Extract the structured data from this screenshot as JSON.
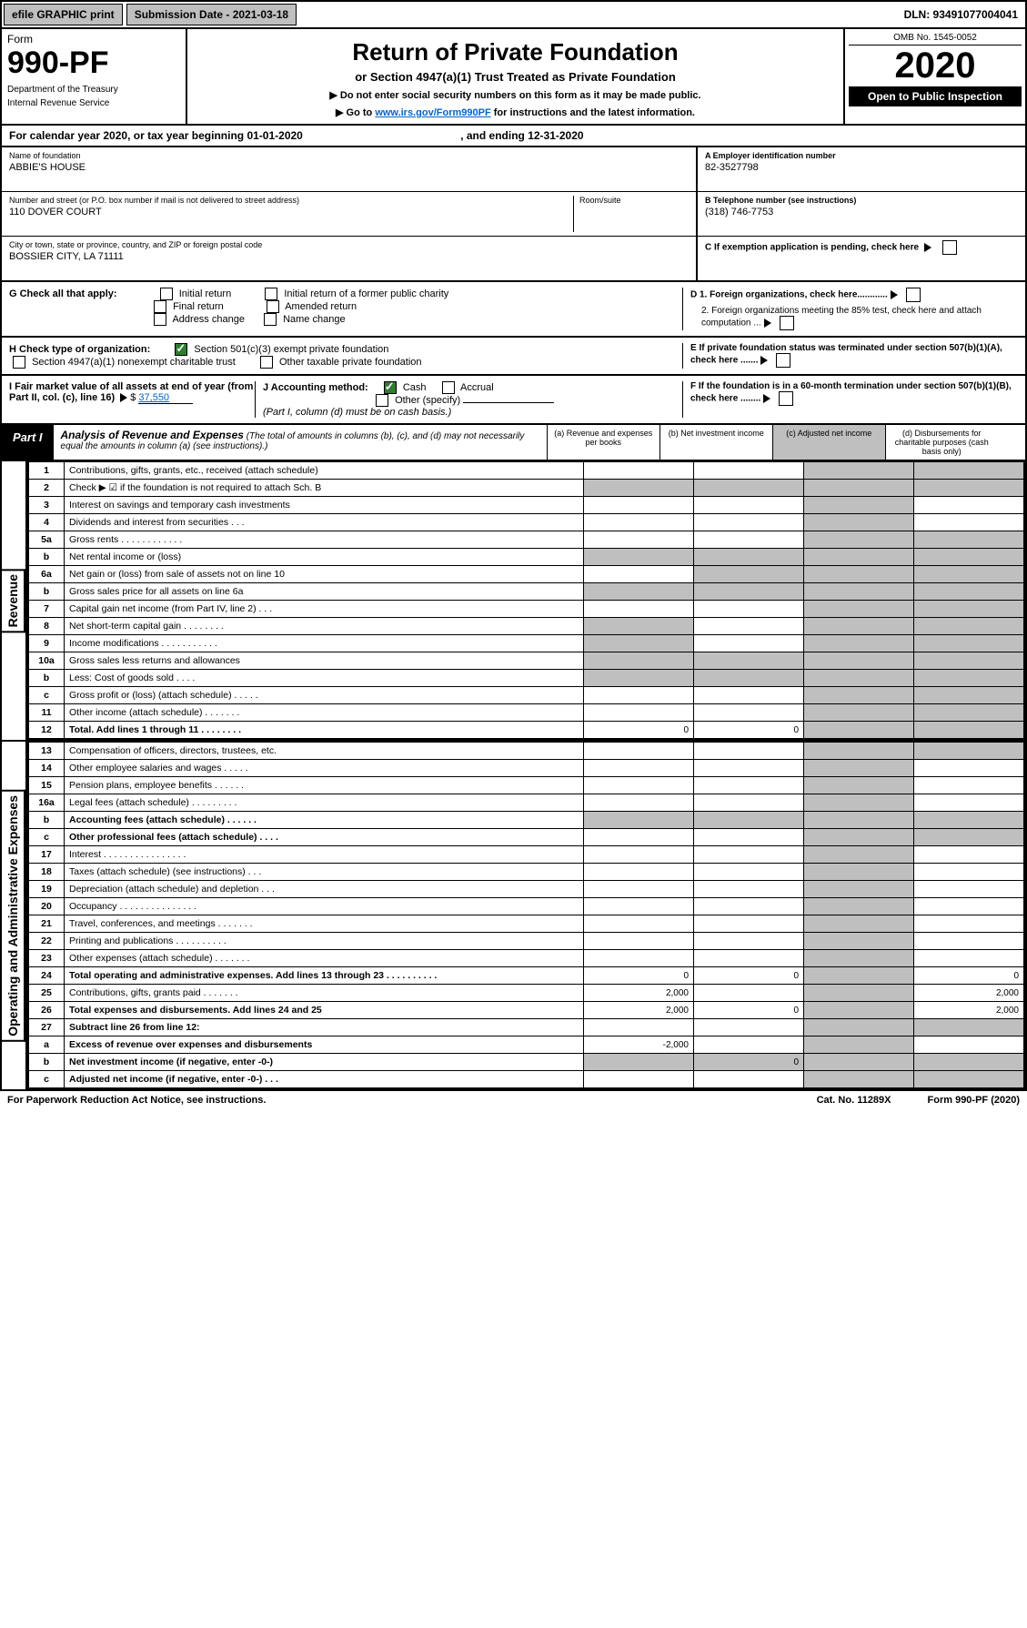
{
  "topbar": {
    "efile": "efile GRAPHIC print",
    "submission": "Submission Date - 2021-03-18",
    "dln": "DLN: 93491077004041"
  },
  "hdr": {
    "form": "Form",
    "num": "990-PF",
    "dept": "Department of the Treasury",
    "irs": "Internal Revenue Service",
    "title": "Return of Private Foundation",
    "subtitle": "or Section 4947(a)(1) Trust Treated as Private Foundation",
    "note1": "▶ Do not enter social security numbers on this form as it may be made public.",
    "note2": "▶ Go to ",
    "link": "www.irs.gov/Form990PF",
    "note3": " for instructions and the latest information.",
    "omb": "OMB No. 1545-0052",
    "year": "2020",
    "open": "Open to Public Inspection"
  },
  "cal": {
    "pre": "For calendar year 2020, or tax year beginning ",
    "begin": "01-01-2020",
    "mid": ", and ending ",
    "end": "12-31-2020"
  },
  "info": {
    "name_lbl": "Name of foundation",
    "name": "ABBIE'S HOUSE",
    "ein_lbl": "A Employer identification number",
    "ein": "82-3527798",
    "addr_lbl": "Number and street (or P.O. box number if mail is not delivered to street address)",
    "addr": "110 DOVER COURT",
    "room_lbl": "Room/suite",
    "tel_lbl": "B Telephone number (see instructions)",
    "tel": "(318) 746-7753",
    "city_lbl": "City or town, state or province, country, and ZIP or foreign postal code",
    "city": "BOSSIER CITY, LA  71111",
    "c_lbl": "C If exemption application is pending, check here",
    "g_lbl": "G Check all that apply:",
    "g_opts": [
      "Initial return",
      "Initial return of a former public charity",
      "Final return",
      "Amended return",
      "Address change",
      "Name change"
    ],
    "d1": "D 1. Foreign organizations, check here............",
    "d2": "2. Foreign organizations meeting the 85% test, check here and attach computation ...",
    "h_lbl": "H Check type of organization:",
    "h1": "Section 501(c)(3) exempt private foundation",
    "h2": "Section 4947(a)(1) nonexempt charitable trust",
    "h3": "Other taxable private foundation",
    "e_lbl": "E If private foundation status was terminated under section 507(b)(1)(A), check here .......",
    "i_lbl": "I Fair market value of all assets at end of year (from Part II, col. (c), line 16)",
    "i_val": "37,550",
    "j_lbl": "J Accounting method:",
    "j1": "Cash",
    "j2": "Accrual",
    "j3": "Other (specify)",
    "j_note": "(Part I, column (d) must be on cash basis.)",
    "f_lbl": "F If the foundation is in a 60-month termination under section 507(b)(1)(B), check here ........"
  },
  "part1": {
    "tab": "Part I",
    "title": "Analysis of Revenue and Expenses",
    "sub": "(The total of amounts in columns (b), (c), and (d) may not necessarily equal the amounts in column (a) (see instructions).)",
    "cols": {
      "a": "(a) Revenue and expenses per books",
      "b": "(b) Net investment income",
      "c": "(c) Adjusted net income",
      "d": "(d) Disbursements for charitable purposes (cash basis only)"
    }
  },
  "rev": {
    "label": "Revenue",
    "rows": [
      {
        "n": "1",
        "d": "Contributions, gifts, grants, etc., received (attach schedule)"
      },
      {
        "n": "2",
        "d": "Check ▶ ☑ if the foundation is not required to attach Sch. B"
      },
      {
        "n": "3",
        "d": "Interest on savings and temporary cash investments"
      },
      {
        "n": "4",
        "d": "Dividends and interest from securities   .  .  ."
      },
      {
        "n": "5a",
        "d": "Gross rents   .  .  .  .  .  .  .  .  .  .  .  ."
      },
      {
        "n": "b",
        "d": "Net rental income or (loss)"
      },
      {
        "n": "6a",
        "d": "Net gain or (loss) from sale of assets not on line 10"
      },
      {
        "n": "b",
        "d": "Gross sales price for all assets on line 6a"
      },
      {
        "n": "7",
        "d": "Capital gain net income (from Part IV, line 2)   .  .  ."
      },
      {
        "n": "8",
        "d": "Net short-term capital gain   .  .  .  .  .  .  .  ."
      },
      {
        "n": "9",
        "d": "Income modifications  .  .  .  .  .  .  .  .  .  .  ."
      },
      {
        "n": "10a",
        "d": "Gross sales less returns and allowances"
      },
      {
        "n": "b",
        "d": "Less: Cost of goods sold   .  .  .  ."
      },
      {
        "n": "c",
        "d": "Gross profit or (loss) (attach schedule)   .  .  .  .  ."
      },
      {
        "n": "11",
        "d": "Other income (attach schedule)   .  .  .  .  .  .  ."
      },
      {
        "n": "12",
        "d": "Total. Add lines 1 through 11   .  .  .  .  .  .  .  .",
        "a": "0",
        "b": "0"
      }
    ]
  },
  "exp": {
    "label": "Operating and Administrative Expenses",
    "rows": [
      {
        "n": "13",
        "d": "Compensation of officers, directors, trustees, etc."
      },
      {
        "n": "14",
        "d": "Other employee salaries and wages   .  .  .  .  ."
      },
      {
        "n": "15",
        "d": "Pension plans, employee benefits   .  .  .  .  .  ."
      },
      {
        "n": "16a",
        "d": "Legal fees (attach schedule)  .  .  .  .  .  .  .  .  ."
      },
      {
        "n": "b",
        "d": "Accounting fees (attach schedule)   .  .  .  .  .  ."
      },
      {
        "n": "c",
        "d": "Other professional fees (attach schedule)   .  .  .  ."
      },
      {
        "n": "17",
        "d": "Interest  .  .  .  .  .  .  .  .  .  .  .  .  .  .  .  ."
      },
      {
        "n": "18",
        "d": "Taxes (attach schedule) (see instructions)   .  .  ."
      },
      {
        "n": "19",
        "d": "Depreciation (attach schedule) and depletion   .  .  ."
      },
      {
        "n": "20",
        "d": "Occupancy  .  .  .  .  .  .  .  .  .  .  .  .  .  .  ."
      },
      {
        "n": "21",
        "d": "Travel, conferences, and meetings  .  .  .  .  .  .  ."
      },
      {
        "n": "22",
        "d": "Printing and publications  .  .  .  .  .  .  .  .  .  ."
      },
      {
        "n": "23",
        "d": "Other expenses (attach schedule)   .  .  .  .  .  .  ."
      },
      {
        "n": "24",
        "d": "Total operating and administrative expenses. Add lines 13 through 23   .  .  .  .  .  .  .  .  .  .",
        "a": "0",
        "b": "0",
        "dd": "0"
      },
      {
        "n": "25",
        "d": "Contributions, gifts, grants paid   .  .  .  .  .  .  .",
        "a": "2,000",
        "dd": "2,000"
      },
      {
        "n": "26",
        "d": "Total expenses and disbursements. Add lines 24 and 25",
        "a": "2,000",
        "b": "0",
        "dd": "2,000"
      },
      {
        "n": "27",
        "d": "Subtract line 26 from line 12:"
      },
      {
        "n": "a",
        "d": "Excess of revenue over expenses and disbursements",
        "a": "-2,000"
      },
      {
        "n": "b",
        "d": "Net investment income (if negative, enter -0-)",
        "b": "0"
      },
      {
        "n": "c",
        "d": "Adjusted net income (if negative, enter -0-)   .  .  ."
      }
    ]
  },
  "foot": {
    "pra": "For Paperwork Reduction Act Notice, see instructions.",
    "cat": "Cat. No. 11289X",
    "form": "Form 990-PF (2020)"
  }
}
